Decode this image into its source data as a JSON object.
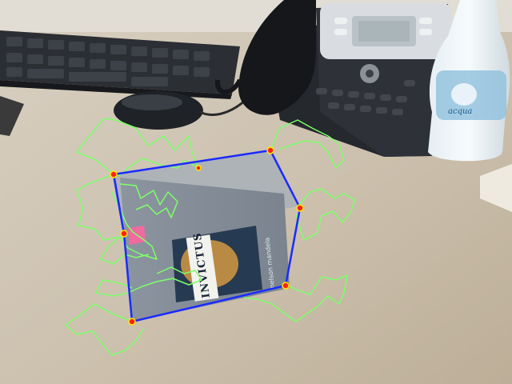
{
  "scene": {
    "book": {
      "title": "INVICTUS",
      "author": "nelson mandela"
    },
    "bottle": {
      "brand": "acqua"
    },
    "tracking": {
      "box_edge_color": "#1a2bff",
      "track_color": "#7dff6a",
      "corner_color": "#ff2020",
      "corner_count": 7
    }
  }
}
